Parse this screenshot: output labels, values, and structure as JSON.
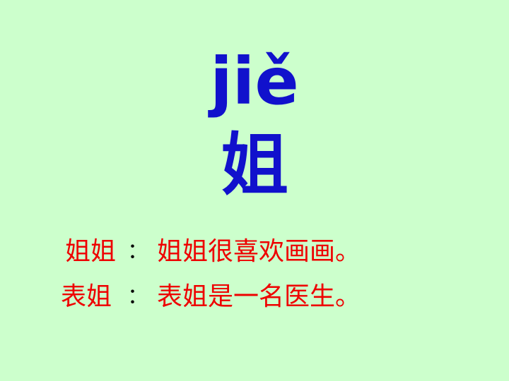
{
  "title": {
    "pinyin": "jiě",
    "character": "姐"
  },
  "examples": [
    {
      "word": "姐姐",
      "colon": "：",
      "sentence": "姐姐很喜欢画画。"
    },
    {
      "word": "表姐",
      "colon": "：",
      "sentence": "表姐是一名医生。"
    }
  ],
  "colors": {
    "background": "#ccffcc",
    "title": "#1111cc",
    "example_text": "#ee0000",
    "colon": "#000000"
  }
}
